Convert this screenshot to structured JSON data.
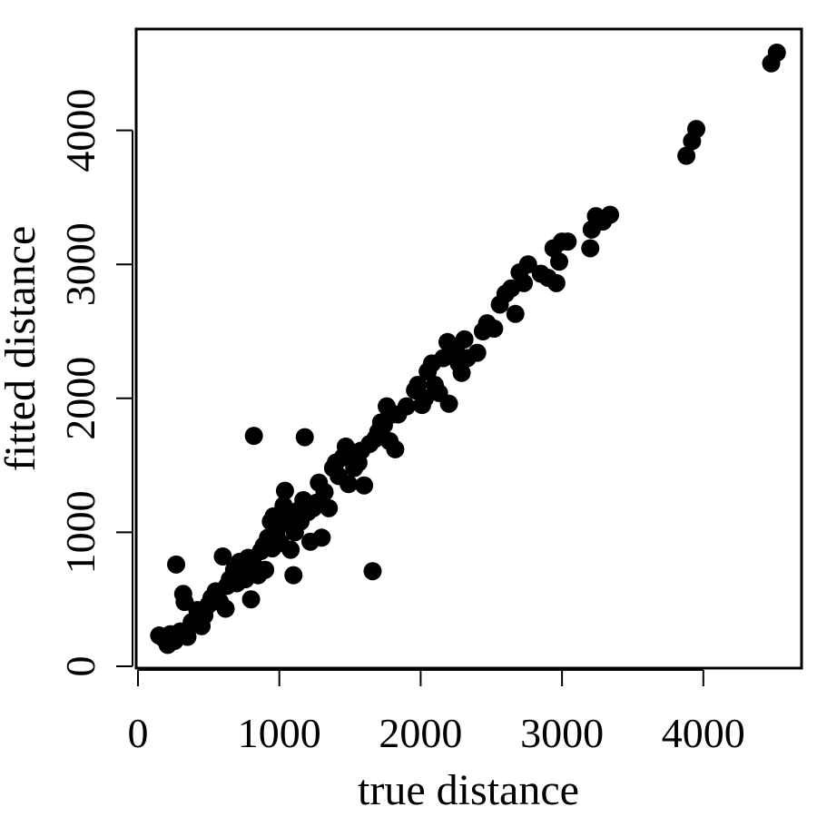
{
  "chart_data": {
    "type": "scatter",
    "title": "",
    "xlabel": "true distance",
    "ylabel": "fitted distance",
    "xlim": [
      0,
      4700
    ],
    "ylim": [
      0,
      4700
    ],
    "x_ticks": [
      0,
      1000,
      2000,
      3000,
      4000
    ],
    "y_ticks": [
      0,
      1000,
      2000,
      3000,
      4000
    ],
    "x_tick_labels": [
      "0",
      "1000",
      "2000",
      "3000",
      "4000"
    ],
    "y_tick_labels": [
      "0",
      "1000",
      "2000",
      "3000",
      "4000"
    ],
    "grid": false,
    "legend": "none",
    "marker_color": "#000000",
    "series": [
      {
        "points": [
          [
            150,
            230
          ],
          [
            180,
            210
          ],
          [
            210,
            160
          ],
          [
            230,
            240
          ],
          [
            260,
            190
          ],
          [
            270,
            760
          ],
          [
            300,
            260
          ],
          [
            320,
            540
          ],
          [
            330,
            480
          ],
          [
            350,
            220
          ],
          [
            380,
            330
          ],
          [
            420,
            420
          ],
          [
            450,
            300
          ],
          [
            470,
            380
          ],
          [
            500,
            460
          ],
          [
            520,
            510
          ],
          [
            550,
            560
          ],
          [
            580,
            480
          ],
          [
            600,
            820
          ],
          [
            620,
            430
          ],
          [
            630,
            600
          ],
          [
            650,
            650
          ],
          [
            680,
            720
          ],
          [
            700,
            620
          ],
          [
            720,
            780
          ],
          [
            740,
            700
          ],
          [
            760,
            650
          ],
          [
            780,
            810
          ],
          [
            800,
            500
          ],
          [
            820,
            1720
          ],
          [
            830,
            740
          ],
          [
            850,
            680
          ],
          [
            870,
            860
          ],
          [
            890,
            900
          ],
          [
            900,
            720
          ],
          [
            920,
            960
          ],
          [
            940,
            1080
          ],
          [
            950,
            880
          ],
          [
            960,
            1120
          ],
          [
            980,
            980
          ],
          [
            1000,
            1050
          ],
          [
            1010,
            920
          ],
          [
            1030,
            1200
          ],
          [
            1040,
            1310
          ],
          [
            1060,
            1100
          ],
          [
            1080,
            870
          ],
          [
            1100,
            680
          ],
          [
            1110,
            1000
          ],
          [
            1130,
            1160
          ],
          [
            1150,
            1080
          ],
          [
            1170,
            1240
          ],
          [
            1180,
            1710
          ],
          [
            1200,
            1150
          ],
          [
            1220,
            930
          ],
          [
            1240,
            1180
          ],
          [
            1260,
            1220
          ],
          [
            1280,
            1370
          ],
          [
            1300,
            960
          ],
          [
            1320,
            1300
          ],
          [
            1350,
            1180
          ],
          [
            1380,
            1480
          ],
          [
            1400,
            1520
          ],
          [
            1420,
            1420
          ],
          [
            1450,
            1560
          ],
          [
            1470,
            1640
          ],
          [
            1490,
            1360
          ],
          [
            1510,
            1600
          ],
          [
            1530,
            1480
          ],
          [
            1560,
            1520
          ],
          [
            1580,
            1610
          ],
          [
            1600,
            1350
          ],
          [
            1640,
            1660
          ],
          [
            1660,
            710
          ],
          [
            1680,
            1700
          ],
          [
            1700,
            1750
          ],
          [
            1720,
            1820
          ],
          [
            1740,
            1800
          ],
          [
            1760,
            1940
          ],
          [
            1780,
            1680
          ],
          [
            1800,
            1880
          ],
          [
            1820,
            1620
          ],
          [
            1840,
            1880
          ],
          [
            1900,
            1940
          ],
          [
            1960,
            2060
          ],
          [
            1980,
            2100
          ],
          [
            2010,
            1950
          ],
          [
            2030,
            2000
          ],
          [
            2050,
            2200
          ],
          [
            2080,
            2260
          ],
          [
            2100,
            2100
          ],
          [
            2130,
            2040
          ],
          [
            2160,
            2300
          ],
          [
            2190,
            2420
          ],
          [
            2200,
            1960
          ],
          [
            2220,
            2320
          ],
          [
            2250,
            2380
          ],
          [
            2270,
            2260
          ],
          [
            2290,
            2190
          ],
          [
            2310,
            2440
          ],
          [
            2330,
            2300
          ],
          [
            2400,
            2340
          ],
          [
            2440,
            2500
          ],
          [
            2470,
            2560
          ],
          [
            2520,
            2520
          ],
          [
            2560,
            2700
          ],
          [
            2600,
            2780
          ],
          [
            2640,
            2820
          ],
          [
            2670,
            2630
          ],
          [
            2700,
            2940
          ],
          [
            2730,
            2860
          ],
          [
            2760,
            3000
          ],
          [
            2850,
            2930
          ],
          [
            2900,
            2900
          ],
          [
            2940,
            3120
          ],
          [
            2960,
            2860
          ],
          [
            2980,
            3020
          ],
          [
            3000,
            3170
          ],
          [
            3040,
            3170
          ],
          [
            3200,
            3120
          ],
          [
            3210,
            3260
          ],
          [
            3240,
            3360
          ],
          [
            3290,
            3320
          ],
          [
            3340,
            3370
          ],
          [
            3880,
            3810
          ],
          [
            3920,
            3920
          ],
          [
            3950,
            4010
          ],
          [
            4480,
            4500
          ],
          [
            4520,
            4580
          ]
        ]
      }
    ]
  }
}
